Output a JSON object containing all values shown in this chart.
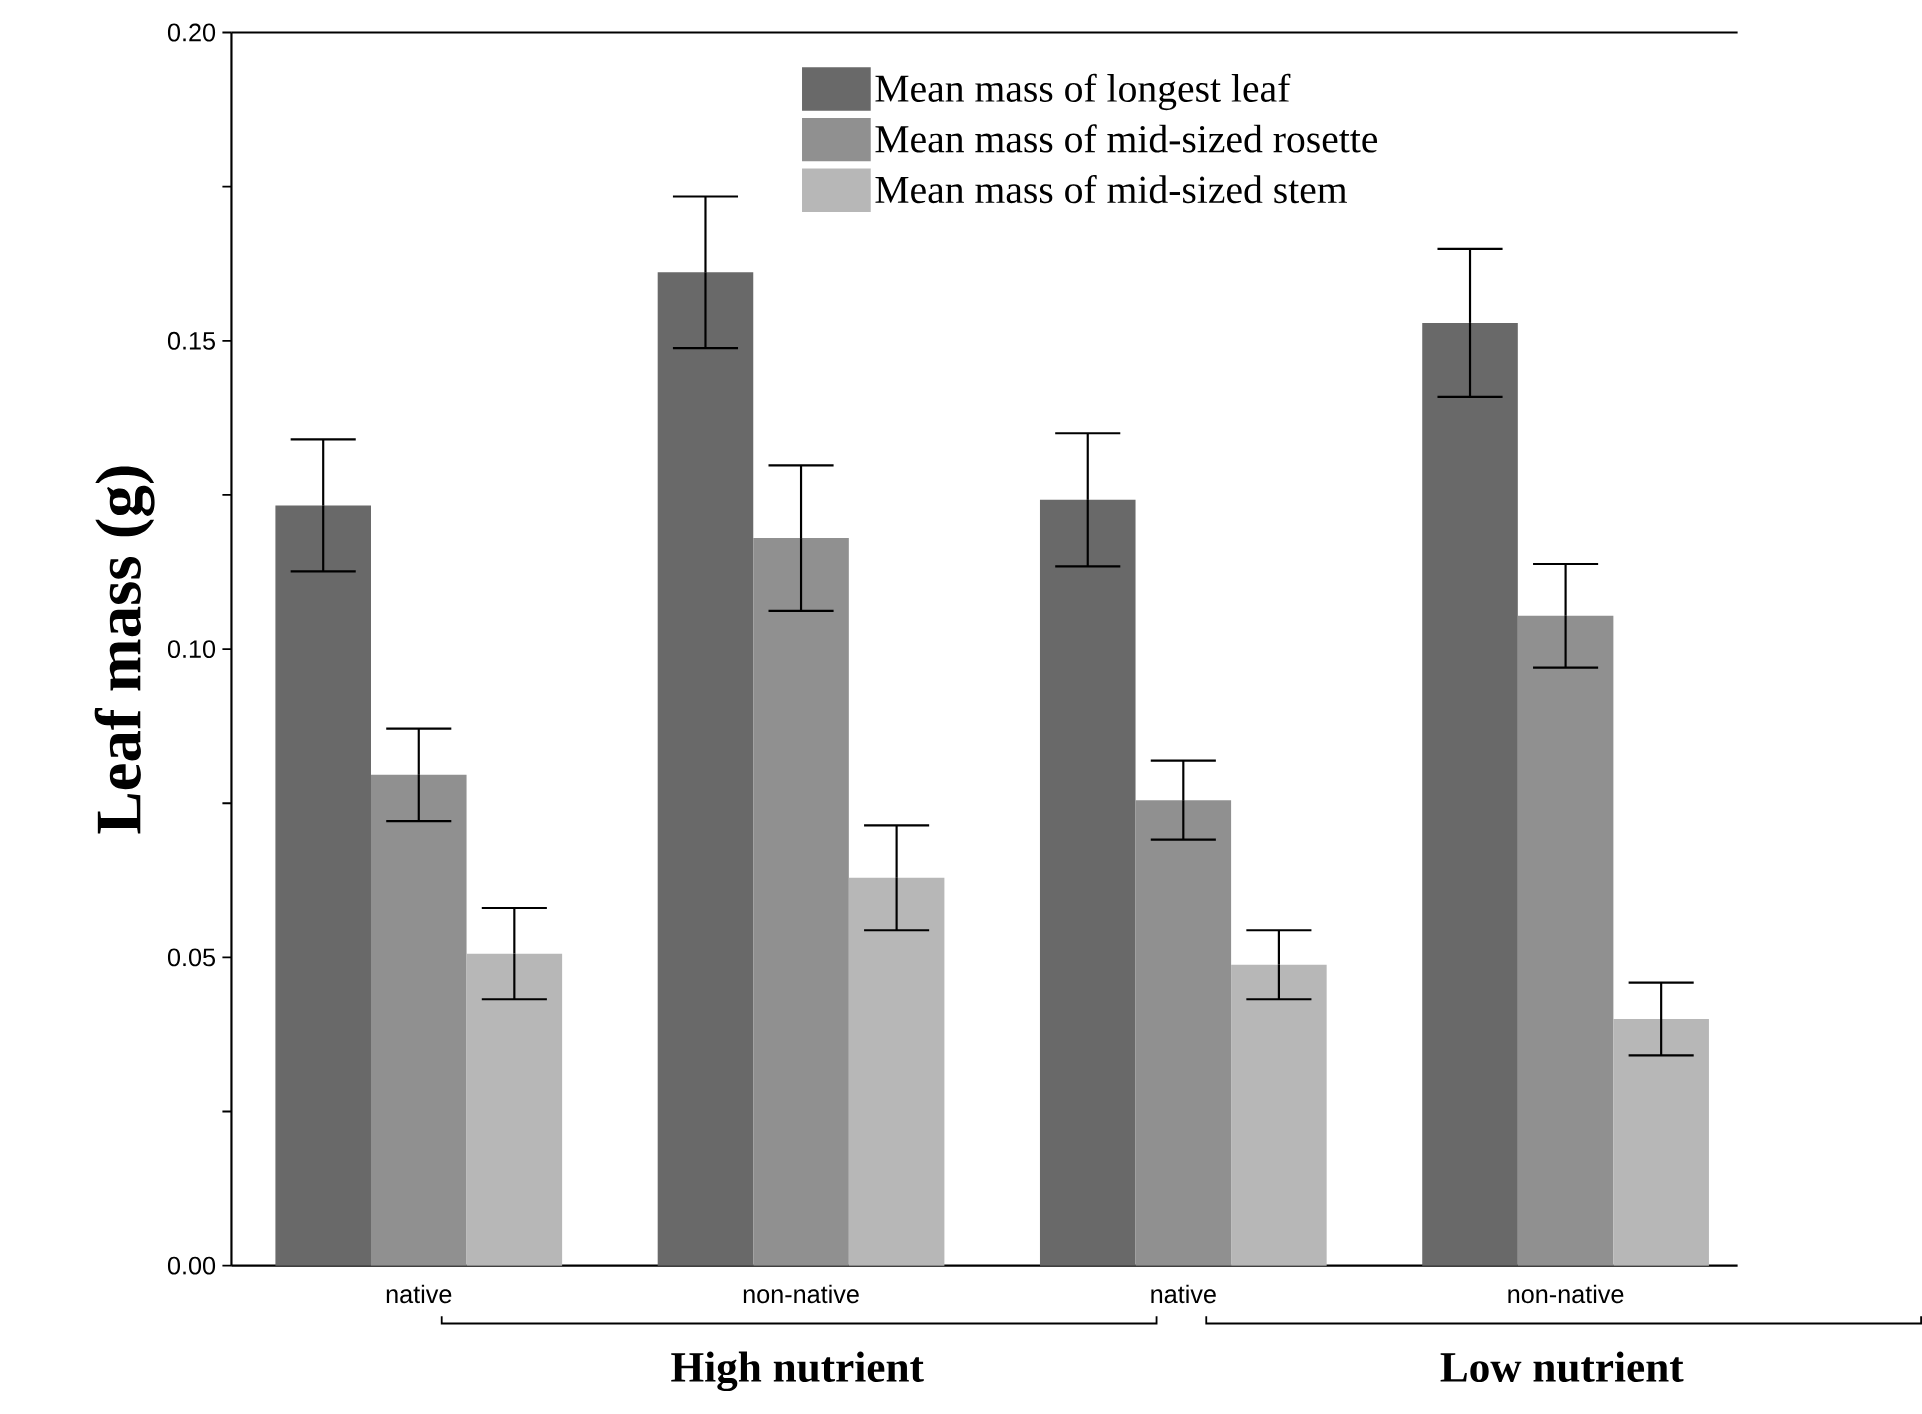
{
  "chart_data": {
    "type": "bar",
    "ylabel": "Leaf mass (g)",
    "categories": [
      "native",
      "non-native",
      "native",
      "non-native"
    ],
    "series": [
      {
        "name": "Mean mass of longest leaf",
        "color": "#696969",
        "values": [
          0.1233,
          0.1611,
          0.1242,
          0.1529
        ],
        "errors": [
          0.0107,
          0.0123,
          0.0108,
          0.012
        ]
      },
      {
        "name": "Mean mass of mid-sized rosette",
        "color": "#909090",
        "values": [
          0.0796,
          0.118,
          0.0755,
          0.1054
        ],
        "errors": [
          0.0075,
          0.0118,
          0.0064,
          0.0084
        ]
      },
      {
        "name": "Mean mass of mid-sized stem",
        "color": "#b7b7b7",
        "values": [
          0.0506,
          0.0629,
          0.0488,
          0.04
        ],
        "errors": [
          0.0074,
          0.0085,
          0.0056,
          0.0059
        ]
      }
    ],
    "ylim": [
      0,
      0.2
    ],
    "yticks": [
      {
        "value": 0,
        "label": "0.00"
      },
      {
        "value": 0.025,
        "label": null
      },
      {
        "value": 0.05,
        "label": "0.05"
      },
      {
        "value": 0.075,
        "label": null
      },
      {
        "value": 0.1,
        "label": "0.10"
      },
      {
        "value": 0.125,
        "label": null
      },
      {
        "value": 0.15,
        "label": "0.15"
      },
      {
        "value": 0.175,
        "label": null
      },
      {
        "value": 0.2,
        "label": "0.20"
      }
    ],
    "legend": "top right",
    "annotations": [
      "High nutrient",
      "Low nutrient"
    ]
  }
}
